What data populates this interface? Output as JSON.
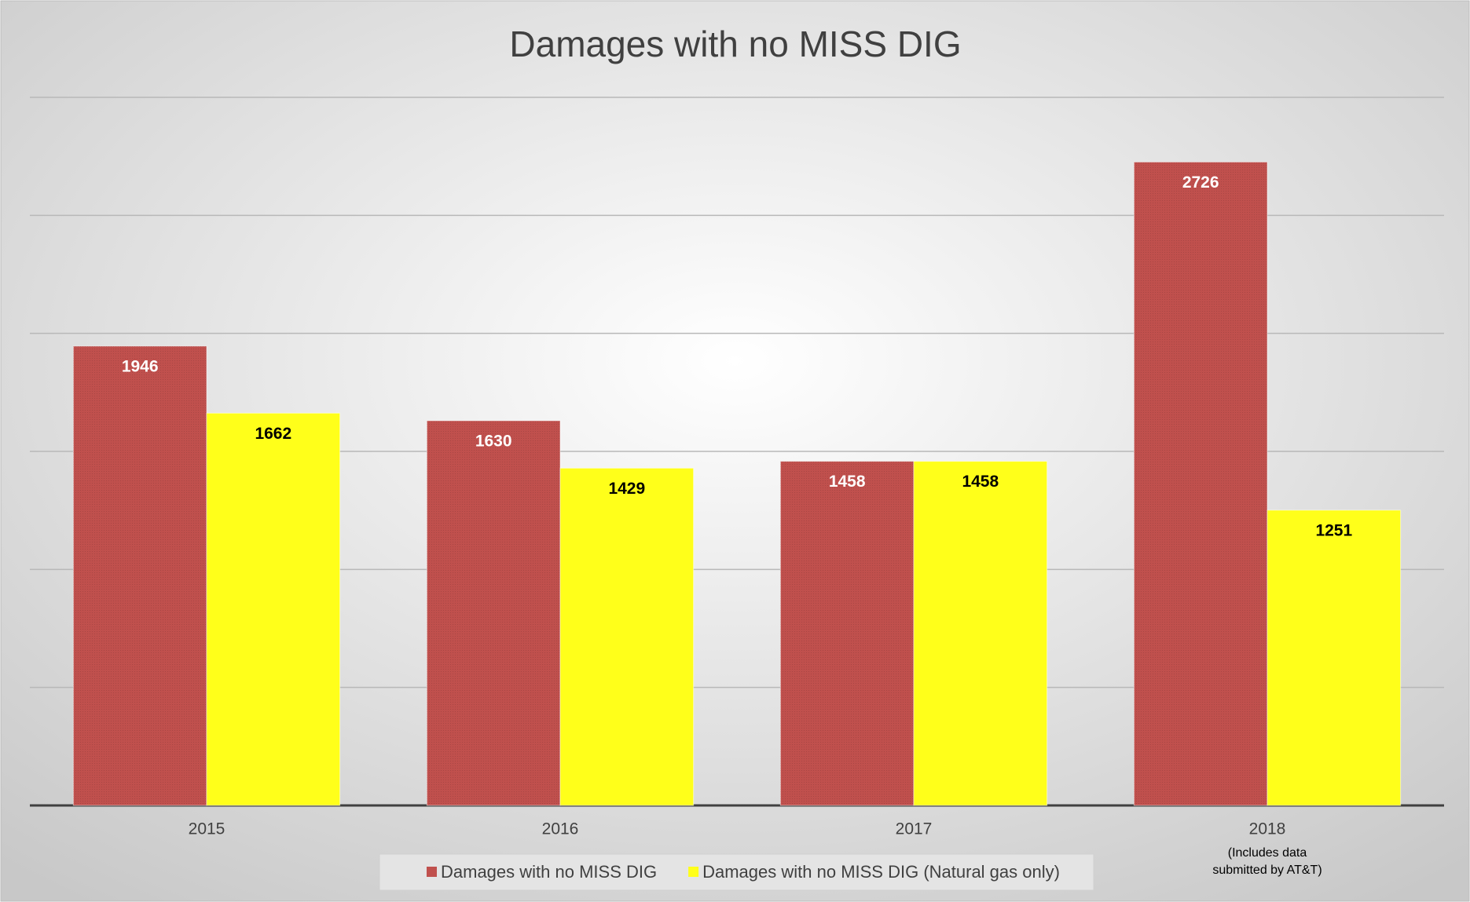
{
  "chart_data": {
    "type": "bar",
    "title": "Damages with no MISS DIG",
    "categories": [
      "2015",
      "2016",
      "2017",
      "2018"
    ],
    "annotations": [
      "(Includes data",
      "submitted by AT&T)"
    ],
    "series": [
      {
        "name": "Damages with no MISS DIG",
        "color": "#c0504d",
        "values": [
          1946,
          1630,
          1458,
          2726
        ]
      },
      {
        "name": "Damages with no MISS DIG (Natural gas only)",
        "color": "#ffff1a",
        "values": [
          1662,
          1429,
          1458,
          1251
        ]
      }
    ],
    "ylim": [
      0,
      3000
    ],
    "yticks": [
      0,
      500,
      1000,
      1500,
      2000,
      2500,
      3000
    ],
    "grid": true,
    "legend": "bottom"
  }
}
